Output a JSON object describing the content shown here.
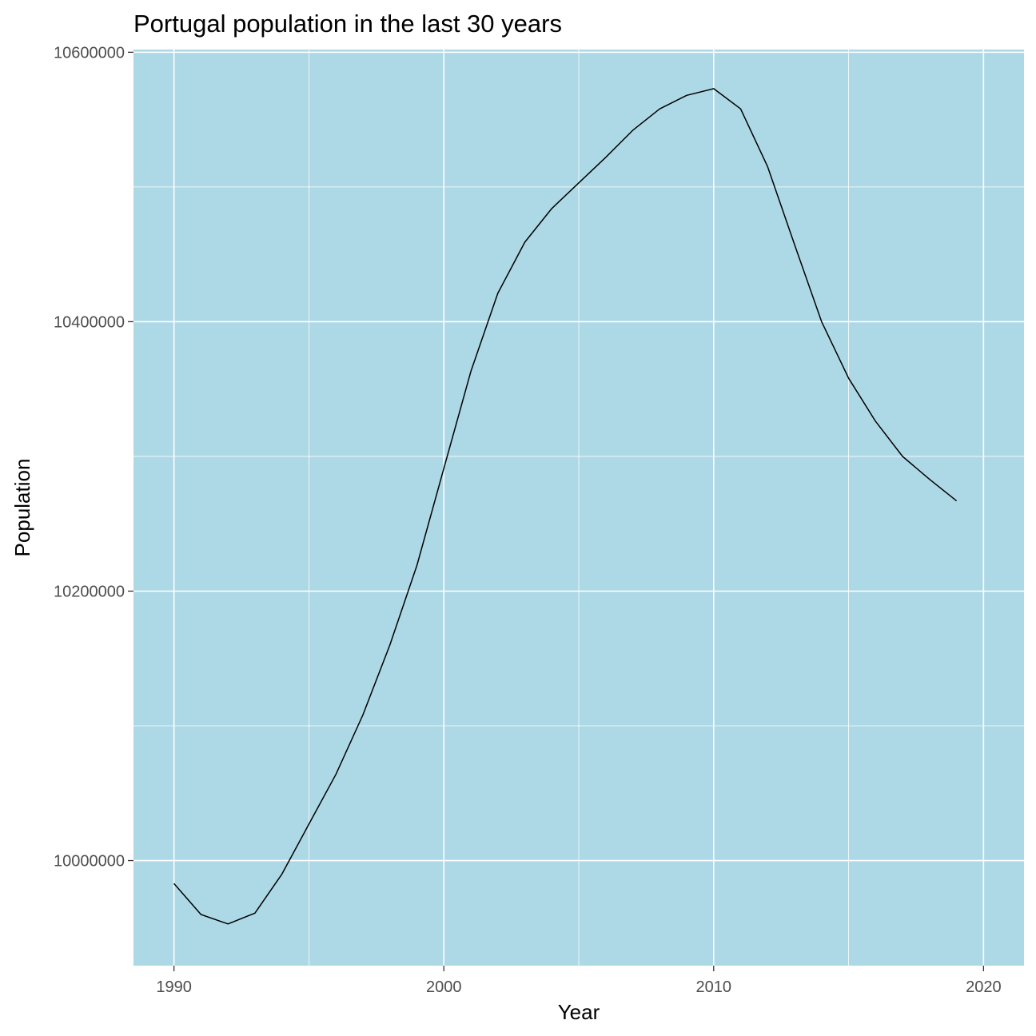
{
  "chart_data": {
    "type": "line",
    "title": "Portugal population in the last 30 years",
    "xlabel": "Year",
    "ylabel": "Population",
    "xlim": [
      1988.5,
      2021.5
    ],
    "ylim": [
      9922000,
      10602000
    ],
    "x_ticks": [
      1990,
      2000,
      2010,
      2020
    ],
    "x_tick_labels": [
      "1990",
      "2000",
      "2010",
      "2020"
    ],
    "y_ticks": [
      10000000,
      10200000,
      10400000,
      10600000
    ],
    "y_tick_labels": [
      "10000000",
      "10200000",
      "10400000",
      "10600000"
    ],
    "grid": true,
    "legend": "none",
    "colors": {
      "panel_background": "#add8e6",
      "grid": "#ffffff",
      "line": "#000000",
      "tick_label": "#4d4d4d",
      "tick_mark": "#333333"
    },
    "series": [
      {
        "x": [
          1990,
          1991,
          1992,
          1993,
          1994,
          1995,
          1996,
          1997,
          1998,
          1999,
          2000,
          2001,
          2002,
          2003,
          2004,
          2005,
          2006,
          2007,
          2008,
          2009,
          2010,
          2011,
          2012,
          2013,
          2014,
          2015,
          2016,
          2017,
          2018,
          2019
        ],
        "values": [
          9983000,
          9960000,
          9953000,
          9961000,
          9990000,
          10027000,
          10064000,
          10108000,
          10160000,
          10219000,
          10291000,
          10363000,
          10421000,
          10459000,
          10484000,
          10503000,
          10522000,
          10542000,
          10558000,
          10568000,
          10573000,
          10558000,
          10515000,
          10457000,
          10400000,
          10358000,
          10326000,
          10300000,
          10283000,
          10267000
        ]
      }
    ]
  }
}
